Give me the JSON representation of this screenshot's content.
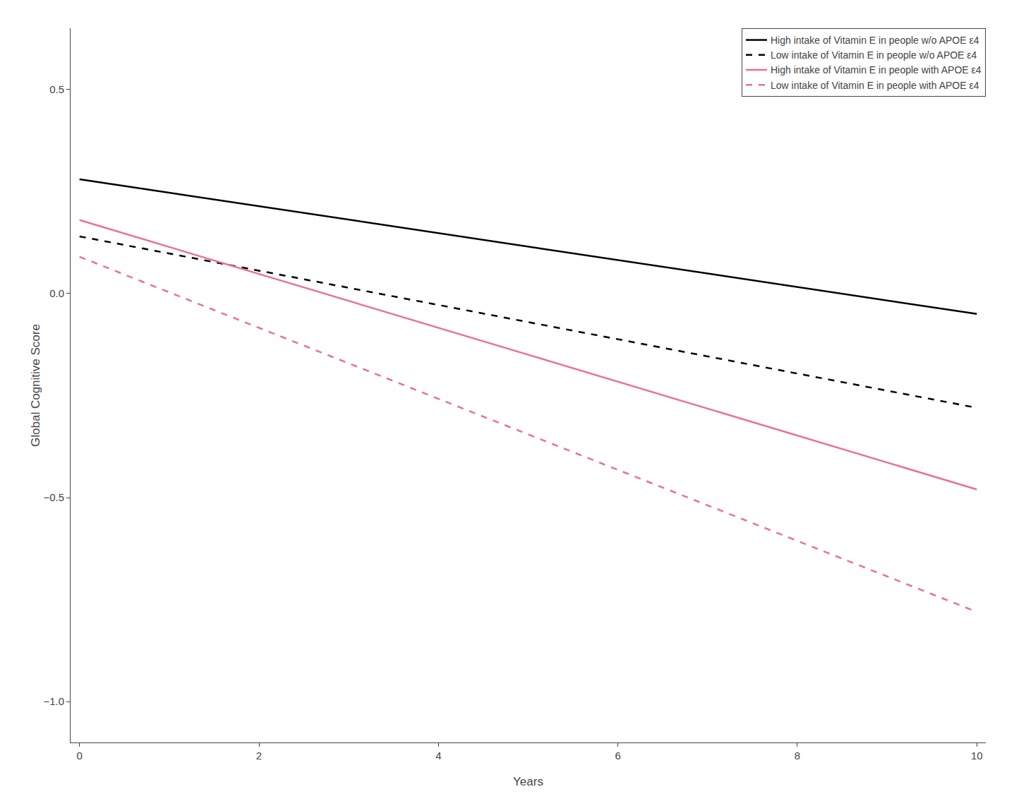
{
  "chart_data": {
    "type": "line",
    "x": [
      0,
      10
    ],
    "xlabel": "Years",
    "ylabel": "Global Cognitive Score",
    "xlim": [
      -0.1,
      10.1
    ],
    "ylim": [
      -1.1,
      0.65
    ],
    "xticks": [
      0,
      2,
      4,
      6,
      8,
      10
    ],
    "yticks": [
      {
        "value": -1.0,
        "label": "−1.0"
      },
      {
        "value": -0.5,
        "label": "−0.5"
      },
      {
        "value": 0.0,
        "label": "0.0"
      },
      {
        "value": 0.5,
        "label": "0.5"
      }
    ],
    "series": [
      {
        "name": "High intake of Vitamin E in people w/o APOE ε4",
        "color": "#000000",
        "line_style": "solid",
        "values": [
          0.28,
          -0.05
        ]
      },
      {
        "name": "Low intake of Vitamin E in people w/o APOE ε4",
        "color": "#000000",
        "line_style": "dashed",
        "values": [
          0.14,
          -0.28
        ]
      },
      {
        "name": "High intake of Vitamin E in people with APOE ε4",
        "color": "#e8738a",
        "line_style": "solid",
        "values": [
          0.18,
          -0.48
        ]
      },
      {
        "name": "Low intake of Vitamin E in people with APOE ε4",
        "color": "#e8738a",
        "line_style": "dashed",
        "values": [
          0.09,
          -0.78
        ]
      }
    ],
    "legend": "upper right",
    "grid": false
  }
}
